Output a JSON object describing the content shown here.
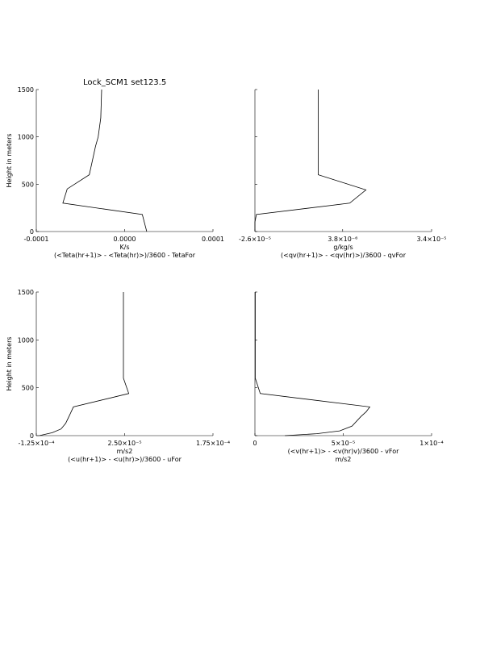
{
  "figure": {
    "title": "Lock_SCM1 set123.5"
  },
  "chart_data": [
    {
      "type": "line",
      "xlabel": "K/s",
      "xdesc": "(<Teta(hr+1)> - <Teta(hr)>)/3600 - TetaFor",
      "ylabel": "Height in meters",
      "xlim": [
        -0.0001,
        0.0001
      ],
      "ylim": [
        0,
        1500
      ],
      "xticks": [
        -0.0001,
        0.0,
        0.0001
      ],
      "xtick_labels": [
        "-0.0001",
        "0.0000",
        "0.0001"
      ],
      "yticks": [
        0,
        500,
        1000,
        1500
      ],
      "ytick_labels": [
        "0",
        "500",
        "1000",
        "1500"
      ],
      "x": [
        2.5e-05,
        2e-05,
        -7e-05,
        -6.5e-05,
        -4e-05,
        -3.3e-05,
        -3e-05,
        -2.7e-05,
        -2.6e-05
      ],
      "y": [
        0,
        180,
        300,
        450,
        600,
        900,
        1000,
        1200,
        1500
      ]
    },
    {
      "type": "line",
      "xlabel": "g/kg/s",
      "xdesc": "(<qv(hr+1)> - <qv(hr)>)/3600 - qvFor",
      "ylabel": "",
      "xlim": [
        -2.6e-05,
        3.4e-05
      ],
      "ylim": [
        0,
        1500
      ],
      "xticks": [
        -2.6e-05,
        3.8e-06,
        3.4e-05
      ],
      "xtick_labels": [
        "-2.6×10⁻⁵",
        "3.8×10⁻⁶",
        "3.4×10⁻⁵"
      ],
      "yticks": [
        0,
        500,
        1000,
        1500
      ],
      "ytick_labels": [
        "",
        "",
        "",
        ""
      ],
      "x": [
        -2.6e-05,
        -2.6e-05,
        -2.55e-05,
        6.2e-06,
        1.17e-05,
        -4.5e-06,
        -4.5e-06,
        -4.5e-06
      ],
      "y": [
        0,
        100,
        180,
        300,
        440,
        600,
        1000,
        1500
      ]
    },
    {
      "type": "line",
      "xlabel": "m/s2",
      "xdesc": "(<u(hr+1)> - <u(hr)>)/3600 - uFor",
      "ylabel": "Height in meters",
      "xlim": [
        -0.000125,
        0.000175
      ],
      "ylim": [
        0,
        1500
      ],
      "xticks": [
        -0.000125,
        2.5e-05,
        0.000175
      ],
      "xtick_labels": [
        "-1.25×10⁻⁴",
        "2.50×10⁻⁵",
        "1.75×10⁻⁴"
      ],
      "yticks": [
        0,
        500,
        1000,
        1500
      ],
      "ytick_labels": [
        "0",
        "500",
        "1000",
        "1500"
      ],
      "x": [
        -0.00012,
        -9.8e-05,
        -8.3e-05,
        -7.5e-05,
        -6.8e-05,
        -6.2e-05,
        3.2e-05,
        2.3e-05,
        2.3e-05,
        2.3e-05
      ],
      "y": [
        0,
        30,
        70,
        130,
        220,
        300,
        440,
        600,
        1000,
        1500
      ]
    },
    {
      "type": "line",
      "xlabel": "m/s2",
      "xdesc": "(<v(hr+1)> - <v(hr)v)/3600 - vFor",
      "ylabel": "",
      "xlim": [
        0,
        0.0001
      ],
      "ylim": [
        0,
        1500
      ],
      "xticks": [
        0,
        5e-05,
        0.0001
      ],
      "xtick_labels": [
        "0",
        "5×10⁻⁵",
        "1×10⁻⁴"
      ],
      "yticks": [
        0,
        500,
        1000,
        1500
      ],
      "ytick_labels": [
        "",
        "",
        "",
        ""
      ],
      "x": [
        1.7e-05,
        3.5e-05,
        4.8e-05,
        5.5e-05,
        6e-05,
        6.3e-05,
        6.5e-05,
        3e-06,
        2e-07,
        2e-07,
        2e-07
      ],
      "y": [
        0,
        20,
        50,
        100,
        200,
        250,
        300,
        440,
        600,
        1000,
        1500
      ]
    }
  ]
}
